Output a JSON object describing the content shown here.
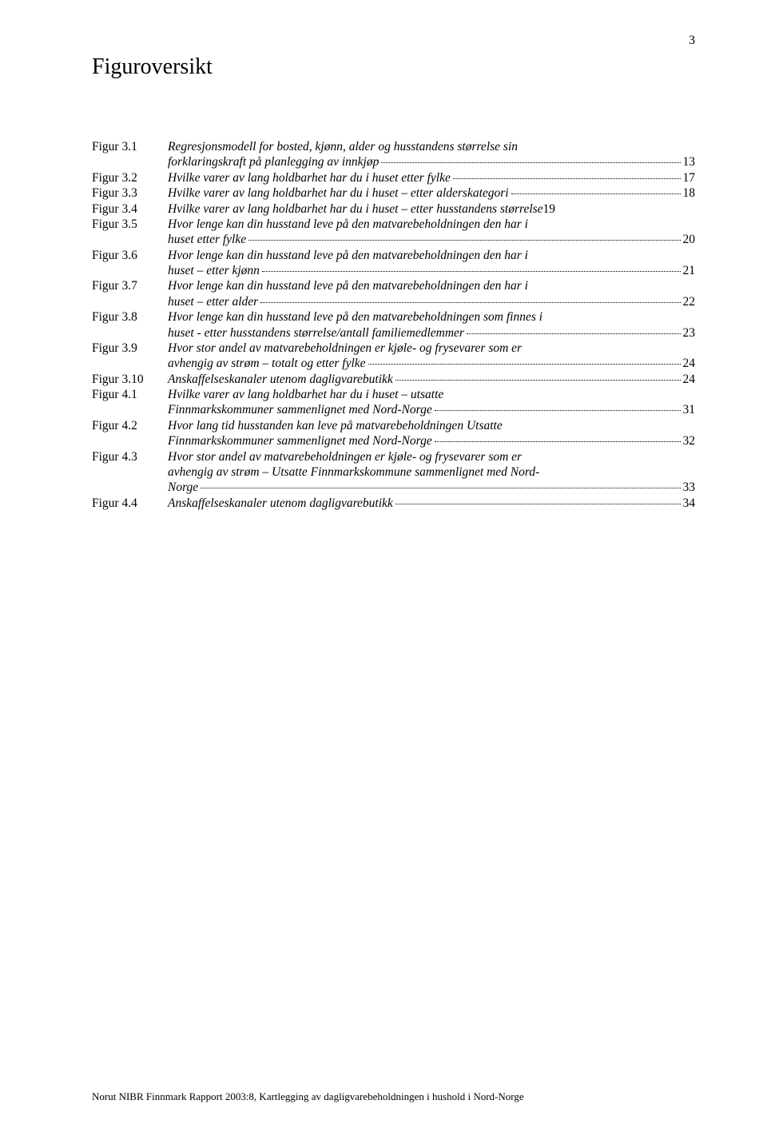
{
  "page_number": "3",
  "title": "Figuroversikt",
  "footer": "Norut NIBR Finnmark Rapport 2003:8, Kartlegging av dagligvarebeholdningen i hushold i Nord-Norge",
  "entries": [
    {
      "label": "Figur 3.1",
      "pre": "Regresjonsmodell for bosted, kjønn, alder og husstandens størrelse sin",
      "last": "forklaringskraft på planlegging av innkjøp",
      "page": "13"
    },
    {
      "label": "Figur 3.2",
      "pre": "",
      "last": "Hvilke varer av lang holdbarhet har du i huset etter fylke",
      "page": "17"
    },
    {
      "label": "Figur 3.3",
      "pre": "",
      "last": "Hvilke varer av lang holdbarhet har du i huset – etter alderskategori",
      "page": "18"
    },
    {
      "label": "Figur 3.4",
      "pre": "",
      "last": "Hvilke varer av lang holdbarhet har du i huset – etter husstandens størrelse",
      "page": "19",
      "nodots": true
    },
    {
      "label": "Figur 3.5",
      "pre": "Hvor lenge kan din husstand leve på den matvarebeholdningen den har i",
      "last": "huset etter fylke",
      "page": "20"
    },
    {
      "label": "Figur 3.6",
      "pre": "Hvor lenge kan din husstand leve på den matvarebeholdningen den har i",
      "last": "huset – etter kjønn",
      "page": "21"
    },
    {
      "label": "Figur 3.7",
      "pre": "Hvor lenge kan din husstand leve på den matvarebeholdningen den har i",
      "last": "huset – etter alder",
      "page": "22"
    },
    {
      "label": "Figur 3.8",
      "pre": "Hvor lenge kan din husstand leve på den matvarebeholdningen som finnes i",
      "last": "huset - etter husstandens størrelse/antall familiemedlemmer",
      "page": "23"
    },
    {
      "label": "Figur 3.9",
      "pre": "Hvor stor andel av matvarebeholdningen er kjøle- og frysevarer som er",
      "last": "avhengig av strøm – totalt og etter fylke",
      "page": "24"
    },
    {
      "label": "Figur 3.10",
      "pre": "",
      "last": "Anskaffelseskanaler utenom dagligvarebutikk",
      "page": "24"
    },
    {
      "label": "Figur 4.1",
      "pre": "Hvilke varer av lang holdbarhet har du i huset – utsatte",
      "last": "Finnmarkskommuner sammenlignet med Nord-Norge",
      "page": "31"
    },
    {
      "label": "Figur 4.2",
      "pre": "Hvor lang tid husstanden kan leve på matvarebeholdningen Utsatte",
      "last": "Finnmarkskommuner sammenlignet med Nord-Norge",
      "page": "32"
    },
    {
      "label": "Figur 4.3",
      "pre": "Hvor stor andel av matvarebeholdningen er kjøle- og frysevarer som er\navhengig av strøm – Utsatte Finnmarkskommune sammenlignet med Nord-",
      "last": "Norge",
      "page": "33"
    },
    {
      "label": "Figur 4.4",
      "pre": "",
      "last": "Anskaffelseskanaler utenom dagligvarebutikk",
      "page": "34"
    }
  ]
}
